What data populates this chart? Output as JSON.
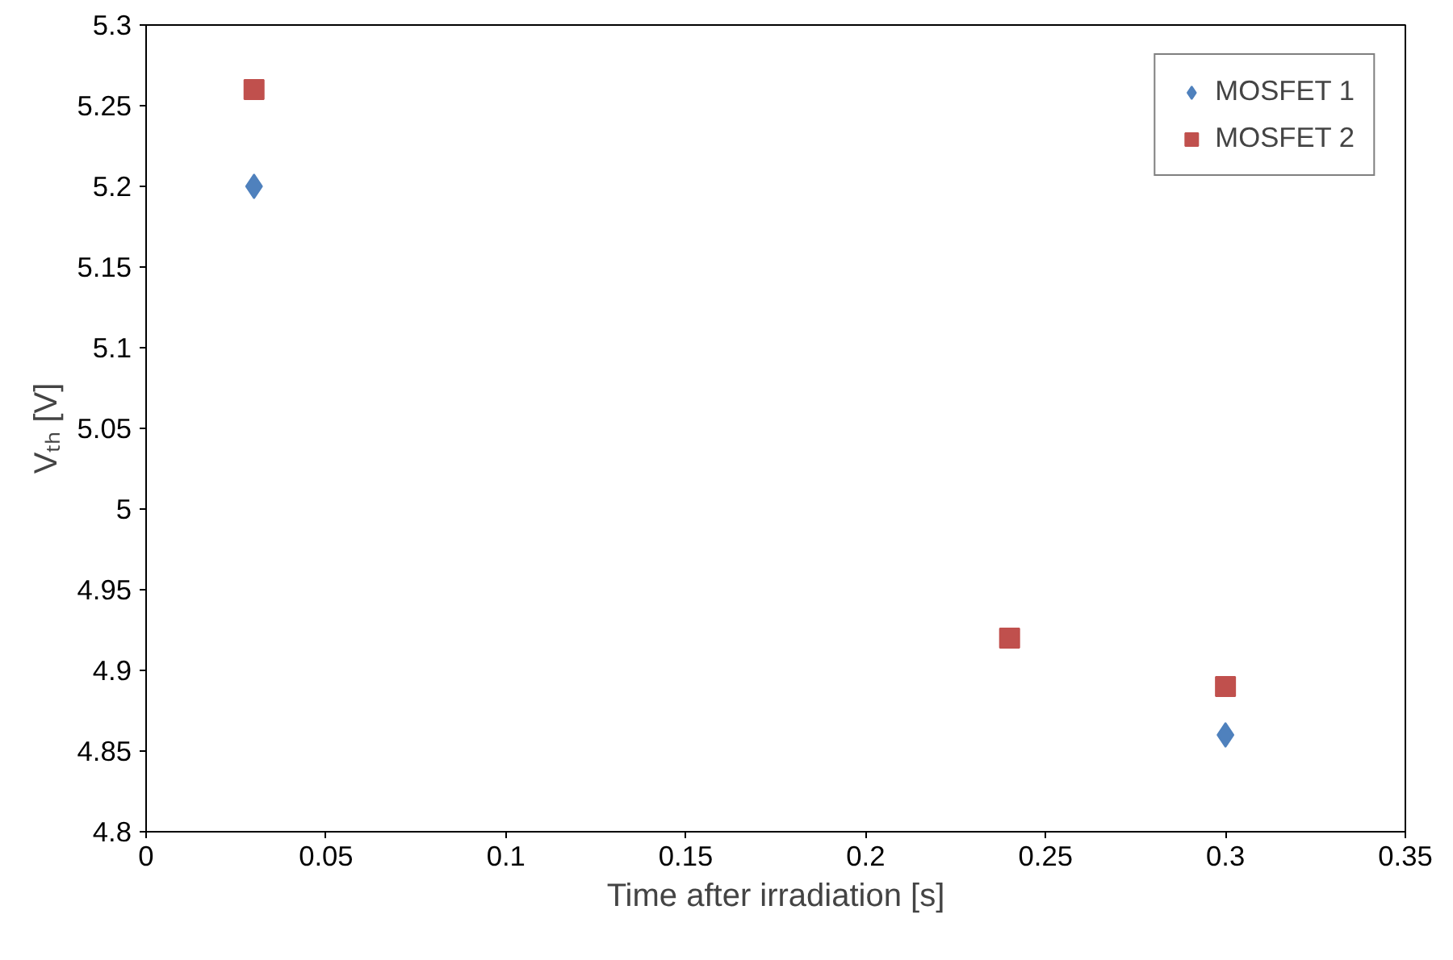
{
  "chart_data": {
    "type": "scatter",
    "xlabel": "Time after irradiation [s]",
    "ylabel": "Vₜₕ [V]",
    "x": [
      0.03,
      0.24,
      0.3
    ],
    "series": [
      {
        "name": "MOSFET 1",
        "color": "#4f81bd",
        "marker": "diamond",
        "values": [
          5.2,
          null,
          4.86
        ]
      },
      {
        "name": "MOSFET 2",
        "color": "#c0504d",
        "marker": "square",
        "values": [
          5.26,
          4.92,
          4.89
        ]
      }
    ],
    "xlim": [
      0,
      0.35
    ],
    "xticks": [
      0,
      0.05,
      0.1,
      0.15,
      0.2,
      0.25,
      0.3,
      0.35
    ],
    "ylim": [
      4.8,
      5.3
    ],
    "yticks": [
      4.8,
      4.85,
      4.9,
      4.95,
      5,
      5.05,
      5.1,
      5.15,
      5.2,
      5.25,
      5.3
    ],
    "grid": false,
    "legend": "top right"
  }
}
